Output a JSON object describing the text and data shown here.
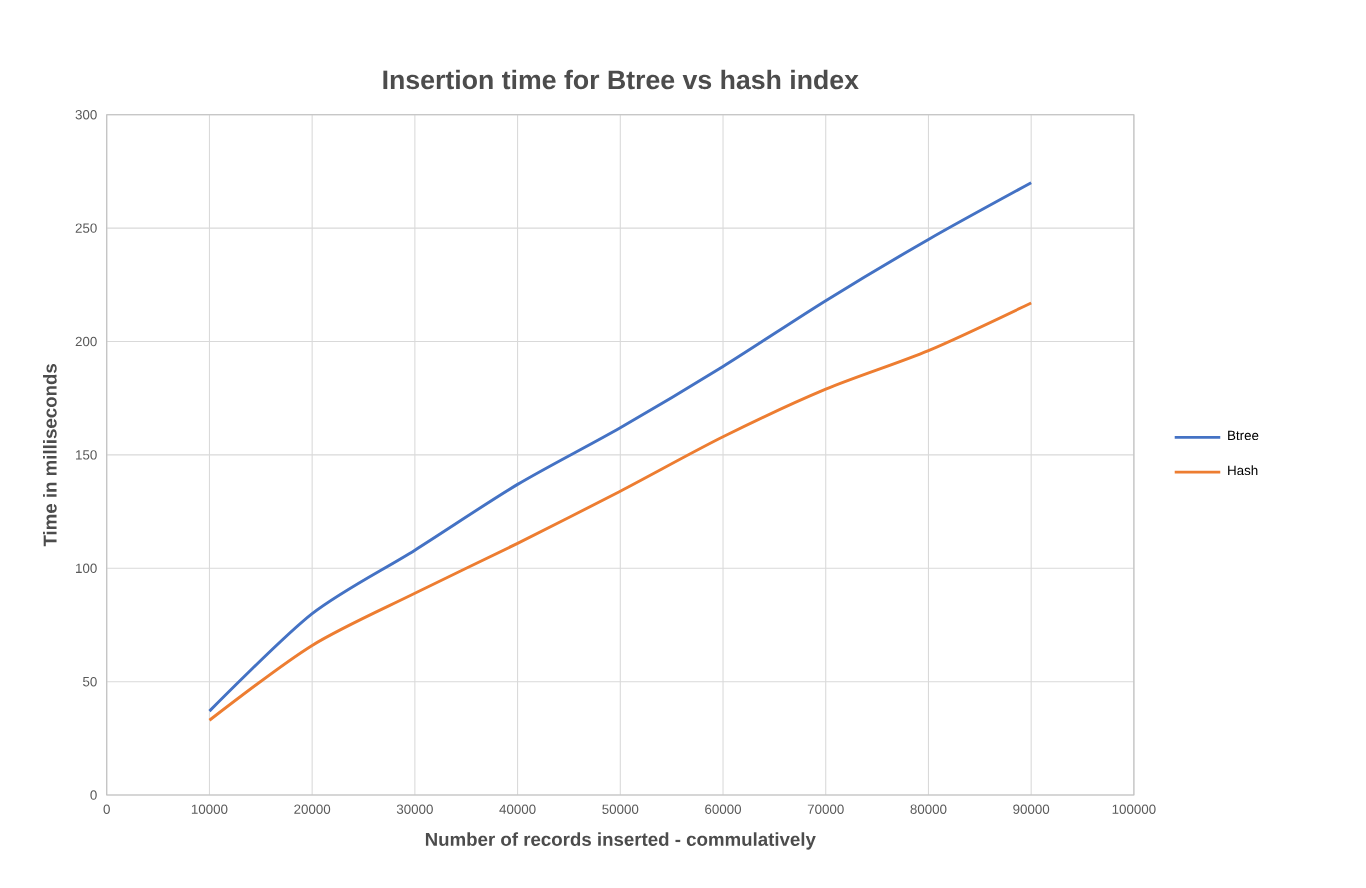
{
  "chart_data": {
    "type": "line",
    "title": "Insertion time for Btree vs hash index",
    "xlabel": "Number of records inserted - commulatively",
    "ylabel": "Time in milliseconds",
    "x": [
      10000,
      20000,
      30000,
      40000,
      50000,
      60000,
      70000,
      80000,
      90000
    ],
    "series": [
      {
        "name": "Btree",
        "color": "#4472c4",
        "values": [
          37,
          80,
          108,
          137,
          162,
          189,
          218,
          245,
          270
        ]
      },
      {
        "name": "Hash",
        "color": "#ed7d31",
        "values": [
          33,
          66,
          89,
          111,
          134,
          158,
          179,
          196,
          217
        ]
      }
    ],
    "xlim": [
      0,
      100000
    ],
    "xticks": [
      0,
      10000,
      20000,
      30000,
      40000,
      50000,
      60000,
      70000,
      80000,
      90000,
      100000
    ],
    "ylim": [
      0,
      300
    ],
    "yticks": [
      0,
      50,
      100,
      150,
      200,
      250,
      300
    ],
    "grid": true,
    "legend": "right",
    "marker": "none",
    "line_style": "solid"
  }
}
